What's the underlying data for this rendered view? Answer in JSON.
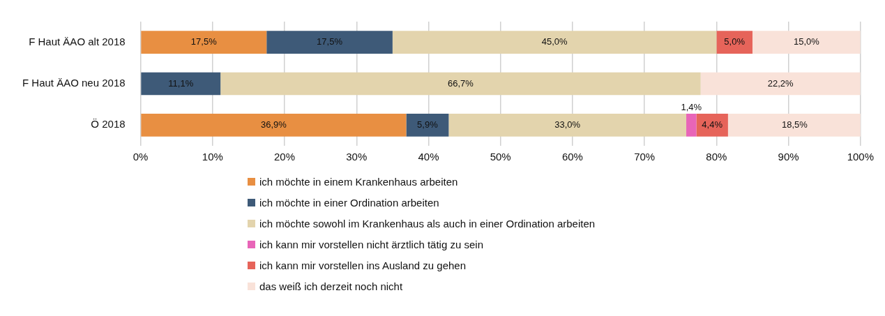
{
  "chart_data": {
    "type": "bar",
    "orientation": "horizontal",
    "stacked": true,
    "categories": [
      "F Haut ÄAO alt 2018",
      "F Haut ÄAO neu 2018",
      "Ö 2018"
    ],
    "series": [
      {
        "name": "ich möchte in einem Krankenhaus arbeiten",
        "color": "#e88f42",
        "values": [
          17.5,
          null,
          36.9
        ],
        "value_labels": [
          "17,5%",
          null,
          "36,9%"
        ]
      },
      {
        "name": "ich möchte in einer Ordination arbeiten",
        "color": "#3e5a78",
        "values": [
          17.5,
          11.1,
          5.9
        ],
        "value_labels": [
          "17,5%",
          "11,1%",
          "5,9%"
        ]
      },
      {
        "name": "ich möchte sowohl im Krankenhaus als auch in einer Ordination arbeiten",
        "color": "#e3d4ad",
        "values": [
          45.0,
          66.7,
          33.0
        ],
        "value_labels": [
          "45,0%",
          "66,7%",
          "33,0%"
        ]
      },
      {
        "name": "ich kann mir vorstellen nicht ärztlich tätig zu sein",
        "color": "#e865b8",
        "values": [
          null,
          null,
          1.4
        ],
        "value_labels": [
          null,
          null,
          "1,4%"
        ]
      },
      {
        "name": "ich kann mir vorstellen ins Ausland zu gehen",
        "color": "#e6645a",
        "values": [
          5.0,
          null,
          4.4
        ],
        "value_labels": [
          "5,0%",
          null,
          "4,4%"
        ]
      },
      {
        "name": "das weiß ich derzeit noch nicht",
        "color": "#f9e2d9",
        "values": [
          15.0,
          22.2,
          18.5
        ],
        "value_labels": [
          "15,0%",
          "22,2%",
          "18,5%"
        ]
      }
    ],
    "xlim": [
      0,
      100
    ],
    "xticks": [
      {
        "value": 0,
        "label": "0%"
      },
      {
        "value": 10,
        "label": "10%"
      },
      {
        "value": 20,
        "label": "20%"
      },
      {
        "value": 30,
        "label": "30%"
      },
      {
        "value": 40,
        "label": "40%"
      },
      {
        "value": 50,
        "label": "50%"
      },
      {
        "value": 60,
        "label": "60%"
      },
      {
        "value": 70,
        "label": "70%"
      },
      {
        "value": 80,
        "label": "80%"
      },
      {
        "value": 90,
        "label": "90%"
      },
      {
        "value": 100,
        "label": "100%"
      }
    ],
    "grid": "x",
    "legend": "bottom"
  }
}
